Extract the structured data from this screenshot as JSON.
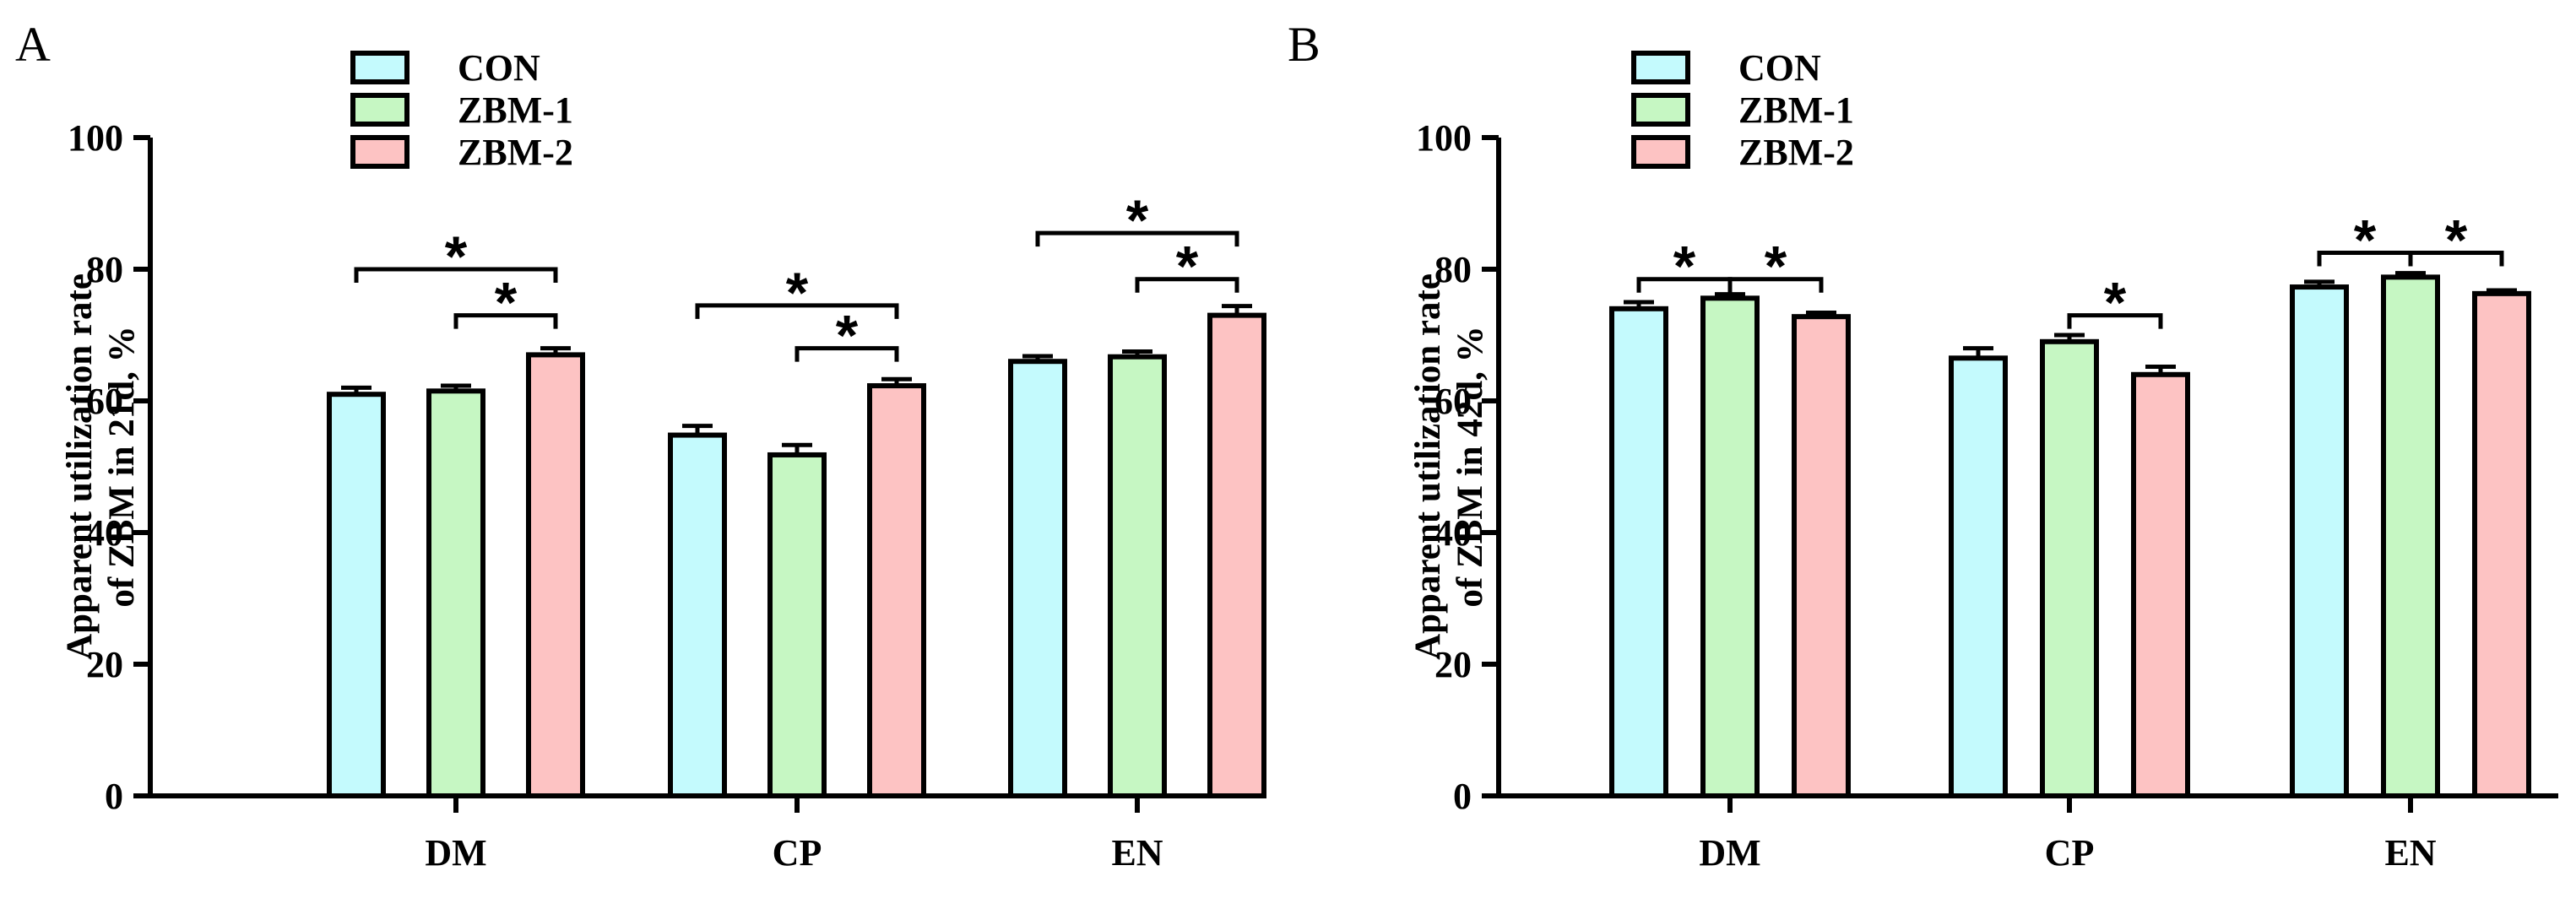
{
  "colors": {
    "CON": "#c4fafd",
    "ZBM-1": "#c6f7c3",
    "ZBM-2": "#fdc3c3",
    "stroke": "#000000"
  },
  "chart_data": [
    {
      "panel": "A",
      "type": "bar",
      "categories": [
        "DM",
        "CP",
        "EN"
      ],
      "series": [
        {
          "name": "CON",
          "values": [
            61.0,
            54.8,
            66.0
          ],
          "errors": [
            1.0,
            1.4,
            0.8
          ]
        },
        {
          "name": "ZBM-1",
          "values": [
            61.5,
            51.8,
            66.7
          ],
          "errors": [
            0.8,
            1.5,
            0.8
          ]
        },
        {
          "name": "ZBM-2",
          "values": [
            67.0,
            62.3,
            73.0
          ],
          "errors": [
            1.0,
            1.0,
            1.4
          ]
        }
      ],
      "ylabel_lines": [
        "Apparent utilization rate",
        "of ZBM in 21d, %"
      ],
      "ylim": [
        0,
        100
      ],
      "yticks": [
        "0",
        "20",
        "40",
        "60",
        "80",
        "100"
      ],
      "significance": [
        {
          "category": 0,
          "from": 0,
          "to": 2,
          "y": 80,
          "label": "*"
        },
        {
          "category": 0,
          "from": 1,
          "to": 2,
          "y": 73,
          "label": "*"
        },
        {
          "category": 1,
          "from": 0,
          "to": 2,
          "y": 74.5,
          "label": "*"
        },
        {
          "category": 1,
          "from": 1,
          "to": 2,
          "y": 68,
          "label": "*"
        },
        {
          "category": 2,
          "from": 0,
          "to": 2,
          "y": 85.5,
          "label": "*"
        },
        {
          "category": 2,
          "from": 1,
          "to": 2,
          "y": 78.5,
          "label": "*"
        }
      ]
    },
    {
      "panel": "B",
      "type": "bar",
      "categories": [
        "DM",
        "CP",
        "EN"
      ],
      "series": [
        {
          "name": "CON",
          "values": [
            74.0,
            66.5,
            77.3
          ],
          "errors": [
            1.0,
            1.5,
            0.8
          ]
        },
        {
          "name": "ZBM-1",
          "values": [
            75.6,
            69.0,
            78.8
          ],
          "errors": [
            0.6,
            1.0,
            0.6
          ]
        },
        {
          "name": "ZBM-2",
          "values": [
            72.8,
            64.0,
            76.3
          ],
          "errors": [
            0.6,
            1.2,
            0.5
          ]
        }
      ],
      "ylabel_lines": [
        "Apparent utilization rate",
        "of ZBM in 42d, %"
      ],
      "ylim": [
        0,
        100
      ],
      "yticks": [
        "0",
        "20",
        "40",
        "60",
        "80",
        "100"
      ],
      "significance": [
        {
          "category": 0,
          "from": 0,
          "to": 1,
          "y": 78.5,
          "label": "*"
        },
        {
          "category": 0,
          "from": 1,
          "to": 2,
          "y": 78.5,
          "label": "*"
        },
        {
          "category": 1,
          "from": 1,
          "to": 2,
          "y": 73,
          "label": "*"
        },
        {
          "category": 2,
          "from": 0,
          "to": 1,
          "y": 82.5,
          "label": "*"
        },
        {
          "category": 2,
          "from": 1,
          "to": 2,
          "y": 82.5,
          "label": "*"
        }
      ]
    }
  ]
}
